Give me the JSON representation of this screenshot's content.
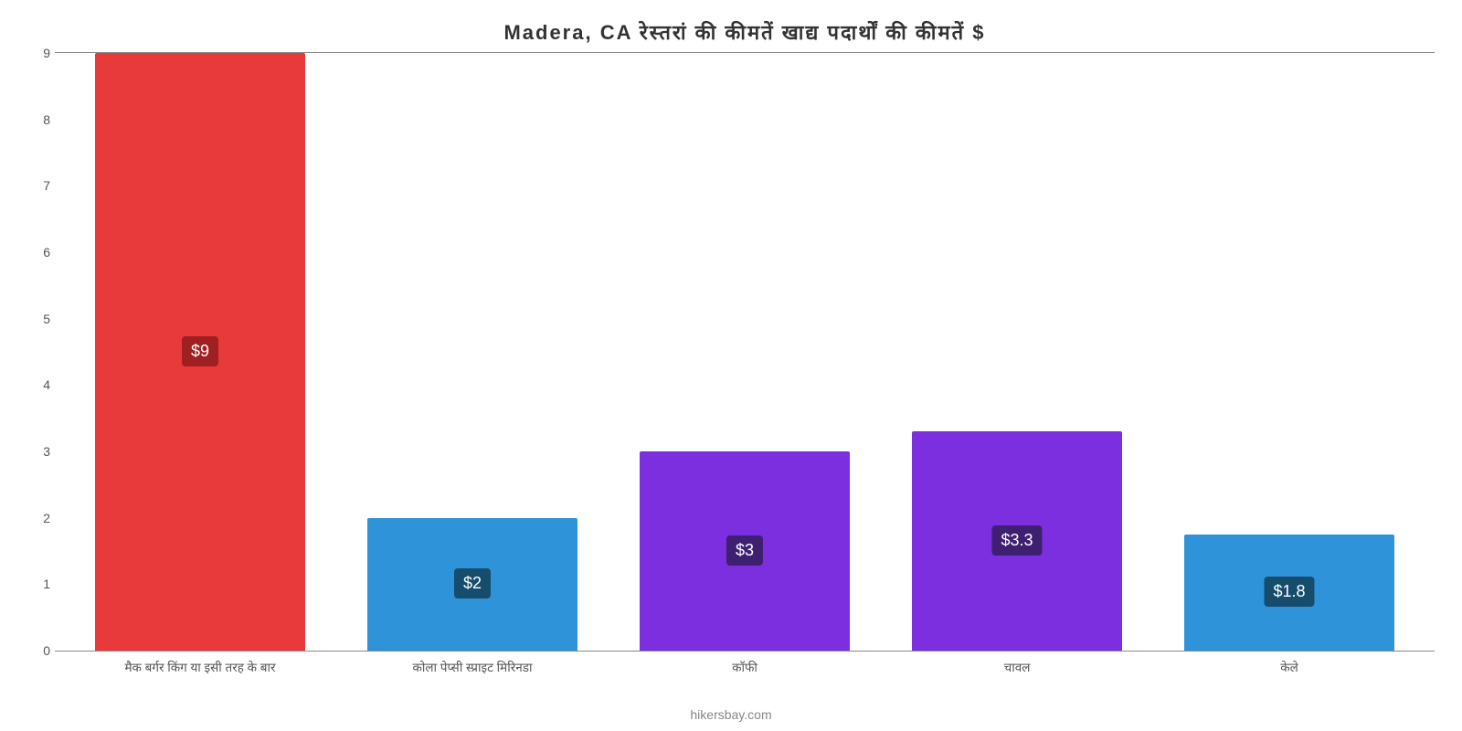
{
  "chart": {
    "type": "bar",
    "title": "Madera, CA रेस्तरां   की   कीमतें   खाद्य   पदार्थों   की   कीमतें   $",
    "title_fontsize": 22,
    "title_color": "#333333",
    "background_color": "#ffffff",
    "axis_color": "#888888",
    "y_axis": {
      "min": 0,
      "max": 9,
      "step": 1,
      "ticks": [
        0,
        1,
        2,
        3,
        4,
        5,
        6,
        7,
        8,
        9
      ],
      "label_color": "#555555",
      "label_fontsize": 14
    },
    "categories": [
      "मैक बर्गर किंग या इसी तरह के बार",
      "कोला पेप्सी स्प्राइट मिरिनडा",
      "कॉफी",
      "चावल",
      "केले"
    ],
    "x_label_color": "#555555",
    "x_label_fontsize": 13.5,
    "bars": [
      {
        "value": 9.0,
        "display": "$9",
        "fill": "#e83a3a",
        "badge_bg": "#9f2021",
        "text": "#ffffff"
      },
      {
        "value": 2.0,
        "display": "$2",
        "fill": "#2e93d9",
        "badge_bg": "#164d6d",
        "text": "#ffffff"
      },
      {
        "value": 3.0,
        "display": "$3",
        "fill": "#7b2fde",
        "badge_bg": "#3f2070",
        "text": "#ffffff"
      },
      {
        "value": 3.3,
        "display": "$3.3",
        "fill": "#7b2fde",
        "badge_bg": "#3f2070",
        "text": "#ffffff"
      },
      {
        "value": 1.75,
        "display": "$1.8",
        "fill": "#2e93d9",
        "badge_bg": "#164d6d",
        "text": "#ffffff"
      }
    ],
    "bar_width_pct": 80,
    "footer": "hikersbay.com",
    "footer_color": "#888888",
    "footer_fontsize": 14
  }
}
